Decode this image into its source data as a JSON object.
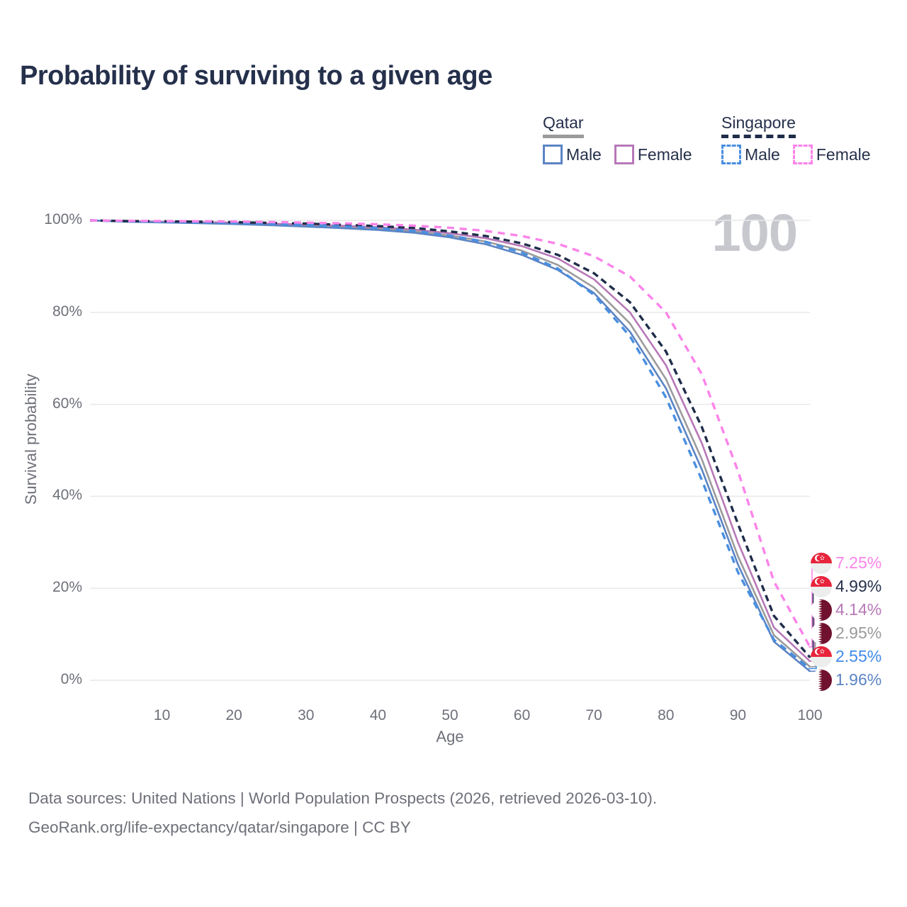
{
  "title": "Probability of surviving to a given age",
  "legend": {
    "groups": [
      {
        "name": "Qatar",
        "underline_style": "solid",
        "underline_color": "#9b9b9b",
        "items": [
          {
            "label": "Male",
            "color": "#5b84c4",
            "dashed": false
          },
          {
            "label": "Female",
            "color": "#b778b8",
            "dashed": false
          }
        ]
      },
      {
        "name": "Singapore",
        "underline_style": "dashed",
        "underline_color": "#1f2d4a",
        "items": [
          {
            "label": "Male",
            "color": "#4a8fe0",
            "dashed": true
          },
          {
            "label": "Female",
            "color": "#fb83ea",
            "dashed": true
          }
        ]
      }
    ]
  },
  "chart_data": {
    "type": "line",
    "title": "Probability of surviving to a given age",
    "xlabel": "Age",
    "ylabel": "Survival probability",
    "xlim": [
      0,
      100
    ],
    "ylim": [
      0,
      100
    ],
    "grid": "horizontal-only",
    "annotation": "100",
    "x": [
      0,
      5,
      10,
      15,
      20,
      25,
      30,
      35,
      40,
      45,
      50,
      55,
      60,
      65,
      70,
      75,
      80,
      85,
      90,
      95,
      100
    ],
    "xticks": [
      [
        10,
        "10"
      ],
      [
        20,
        "20"
      ],
      [
        30,
        "30"
      ],
      [
        40,
        "40"
      ],
      [
        50,
        "50"
      ],
      [
        60,
        "60"
      ],
      [
        70,
        "70"
      ],
      [
        80,
        "80"
      ],
      [
        90,
        "90"
      ],
      [
        100,
        "100"
      ]
    ],
    "yticks": [
      [
        0,
        "0%"
      ],
      [
        20,
        "20%"
      ],
      [
        40,
        "40%"
      ],
      [
        60,
        "60%"
      ],
      [
        80,
        "80%"
      ],
      [
        100,
        "100%"
      ]
    ],
    "series": [
      {
        "name": "Qatar Total",
        "country": "qatar",
        "sex": "total",
        "color": "#9b9b9b",
        "dashed": false,
        "values": [
          100,
          99.75,
          99.6,
          99.5,
          99.35,
          99.1,
          98.85,
          98.55,
          98.2,
          97.6,
          96.7,
          95.4,
          93.4,
          90.3,
          85.4,
          77.6,
          65.5,
          48.0,
          27.0,
          9.8,
          2.95
        ],
        "end_value": "2.95%"
      },
      {
        "name": "Qatar Female",
        "country": "qatar",
        "sex": "female",
        "color": "#b778b8",
        "dashed": false,
        "values": [
          100,
          99.8,
          99.7,
          99.6,
          99.5,
          99.3,
          99.1,
          98.85,
          98.5,
          98.0,
          97.2,
          96.1,
          94.4,
          91.7,
          87.2,
          80.0,
          68.5,
          51.5,
          30.0,
          11.5,
          4.14
        ],
        "end_value": "4.14%"
      },
      {
        "name": "Qatar Male",
        "country": "qatar",
        "sex": "male",
        "color": "#5b84c4",
        "dashed": false,
        "values": [
          100,
          99.7,
          99.55,
          99.4,
          99.2,
          98.95,
          98.65,
          98.3,
          97.9,
          97.3,
          96.3,
          94.8,
          92.5,
          89.2,
          84.2,
          75.8,
          63.5,
          45.8,
          25.2,
          8.4,
          1.96
        ],
        "end_value": "1.96%"
      },
      {
        "name": "Singapore Total",
        "country": "singapore",
        "sex": "total",
        "color": "#1f2d4a",
        "dashed": true,
        "values": [
          100,
          99.85,
          99.8,
          99.7,
          99.6,
          99.45,
          99.3,
          99.05,
          98.75,
          98.35,
          97.6,
          96.6,
          95.0,
          92.5,
          88.5,
          82.2,
          71.5,
          55.0,
          34.0,
          14.0,
          4.99
        ],
        "end_value": "4.99%"
      },
      {
        "name": "Singapore Male",
        "country": "singapore",
        "sex": "male",
        "color": "#4a8fe0",
        "dashed": true,
        "values": [
          100,
          99.8,
          99.7,
          99.6,
          99.45,
          99.25,
          99.0,
          98.7,
          98.3,
          97.7,
          96.7,
          95.3,
          93.0,
          89.5,
          83.8,
          74.8,
          61.5,
          43.5,
          23.5,
          8.8,
          2.55
        ],
        "end_value": "2.55%"
      },
      {
        "name": "Singapore Female",
        "country": "singapore",
        "sex": "female",
        "color": "#fb83ea",
        "dashed": true,
        "values": [
          100,
          99.9,
          99.85,
          99.8,
          99.75,
          99.65,
          99.5,
          99.35,
          99.15,
          98.85,
          98.4,
          97.7,
          96.6,
          94.9,
          92.2,
          87.8,
          80.0,
          66.5,
          45.5,
          21.5,
          7.25
        ],
        "end_value": "7.25%"
      }
    ]
  },
  "end_labels": [
    {
      "flag": "singapore",
      "value": "7.25%",
      "color": "#fb83ea"
    },
    {
      "flag": "singapore",
      "value": "4.99%",
      "color": "#25304b"
    },
    {
      "flag": "qatar",
      "value": "4.14%",
      "color": "#b778b8"
    },
    {
      "flag": "qatar",
      "value": "2.95%",
      "color": "#9b9b9b"
    },
    {
      "flag": "singapore",
      "value": "2.55%",
      "color": "#3f8ae8"
    },
    {
      "flag": "qatar",
      "value": "1.96%",
      "color": "#5b84c4"
    }
  ],
  "footer": {
    "line1": "Data sources: United Nations | World Population Prospects (2026, retrieved 2026-03-10).",
    "line2": "GeoRank.org/life-expectancy/qatar/singapore | CC BY"
  }
}
